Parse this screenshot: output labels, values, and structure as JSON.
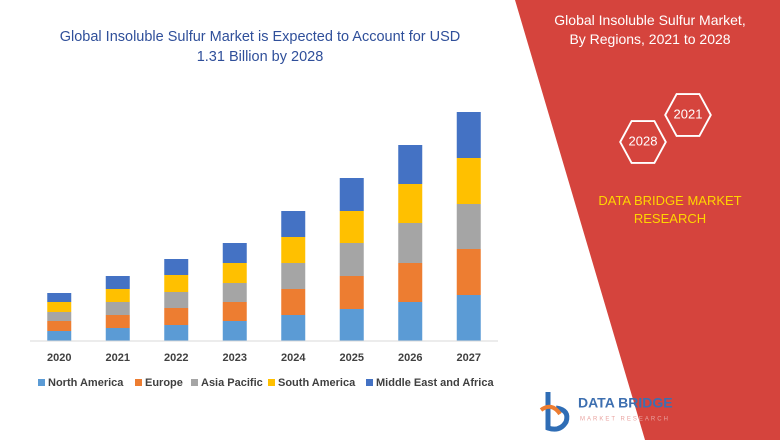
{
  "chart_data": {
    "type": "bar",
    "stacked": true,
    "title": "Global Insoluble Sulfur Market is Expected to Account for USD 1.31 Billion by 2028",
    "categories": [
      "2020",
      "2021",
      "2022",
      "2023",
      "2024",
      "2025",
      "2026",
      "2027"
    ],
    "series": [
      {
        "name": "North America",
        "color": "#5b9bd5",
        "values": [
          10,
          13,
          16,
          20,
          26,
          32,
          39,
          46
        ]
      },
      {
        "name": "Europe",
        "color": "#ed7d31",
        "values": [
          10,
          13,
          17,
          19,
          26,
          33,
          39,
          46
        ]
      },
      {
        "name": "Asia Pacific",
        "color": "#a5a5a5",
        "values": [
          9,
          13,
          16,
          19,
          26,
          33,
          40,
          45
        ]
      },
      {
        "name": "South America",
        "color": "#ffc000",
        "values": [
          10,
          13,
          17,
          20,
          26,
          32,
          39,
          46
        ]
      },
      {
        "name": "Middle East and Africa",
        "color": "#4472c4",
        "values": [
          9,
          13,
          16,
          20,
          26,
          33,
          39,
          46
        ]
      }
    ],
    "ylim": [
      0,
      240
    ],
    "legend": "bottom"
  },
  "side_panel": {
    "title": "Global Insoluble Sulfur Market, By Regions, 2021 to 2028",
    "badges": [
      "2021",
      "2028"
    ],
    "brand": "DATA BRIDGE MARKET RESEARCH"
  },
  "logo": {
    "name": "DATA BRIDGE",
    "tagline": "MARKET RESEARCH"
  }
}
